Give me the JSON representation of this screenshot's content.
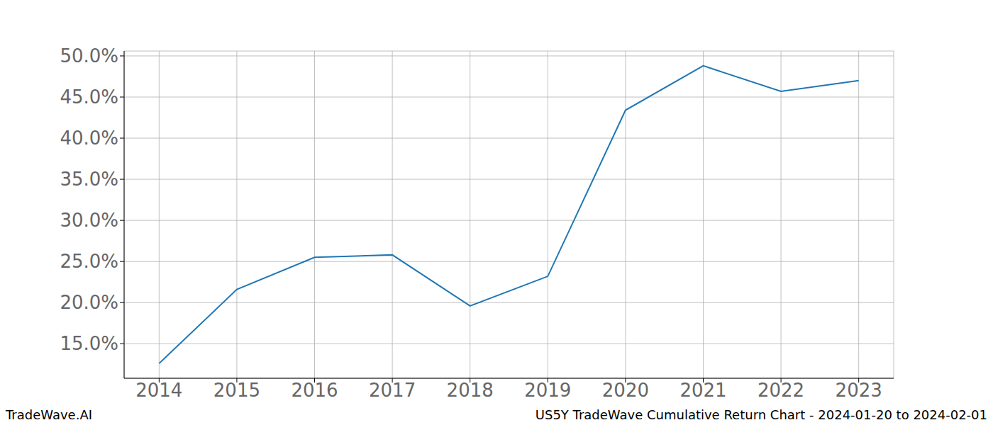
{
  "chart_data": {
    "type": "line",
    "annotations": [
      "TradeWave.AI",
      "US5Y TradeWave Cumulative Return Chart - 2024-01-20 to 2024-02-01"
    ],
    "x": [
      2014,
      2015,
      2016,
      2017,
      2018,
      2019,
      2020,
      2021,
      2022,
      2023
    ],
    "series": [
      {
        "name": "US5Y",
        "color": "#1f77b4",
        "values": [
          12.6,
          21.6,
          25.5,
          25.8,
          19.6,
          23.2,
          43.4,
          48.8,
          45.7,
          47.0
        ]
      }
    ],
    "xlim": [
      2013.55,
      2023.45
    ],
    "xticks": [
      2014,
      2015,
      2016,
      2017,
      2018,
      2019,
      2020,
      2021,
      2022,
      2023
    ],
    "ylim": [
      10.8,
      50.6
    ],
    "yticks": [
      {
        "value": 15,
        "label": "15.0%"
      },
      {
        "value": 20,
        "label": "20.0%"
      },
      {
        "value": 25,
        "label": "25.0%"
      },
      {
        "value": 30,
        "label": "30.0%"
      },
      {
        "value": 35,
        "label": "35.0%"
      },
      {
        "value": 40,
        "label": "40.0%"
      },
      {
        "value": 45,
        "label": "45.0%"
      },
      {
        "value": 50,
        "label": "50.0%"
      }
    ],
    "grid": true
  }
}
